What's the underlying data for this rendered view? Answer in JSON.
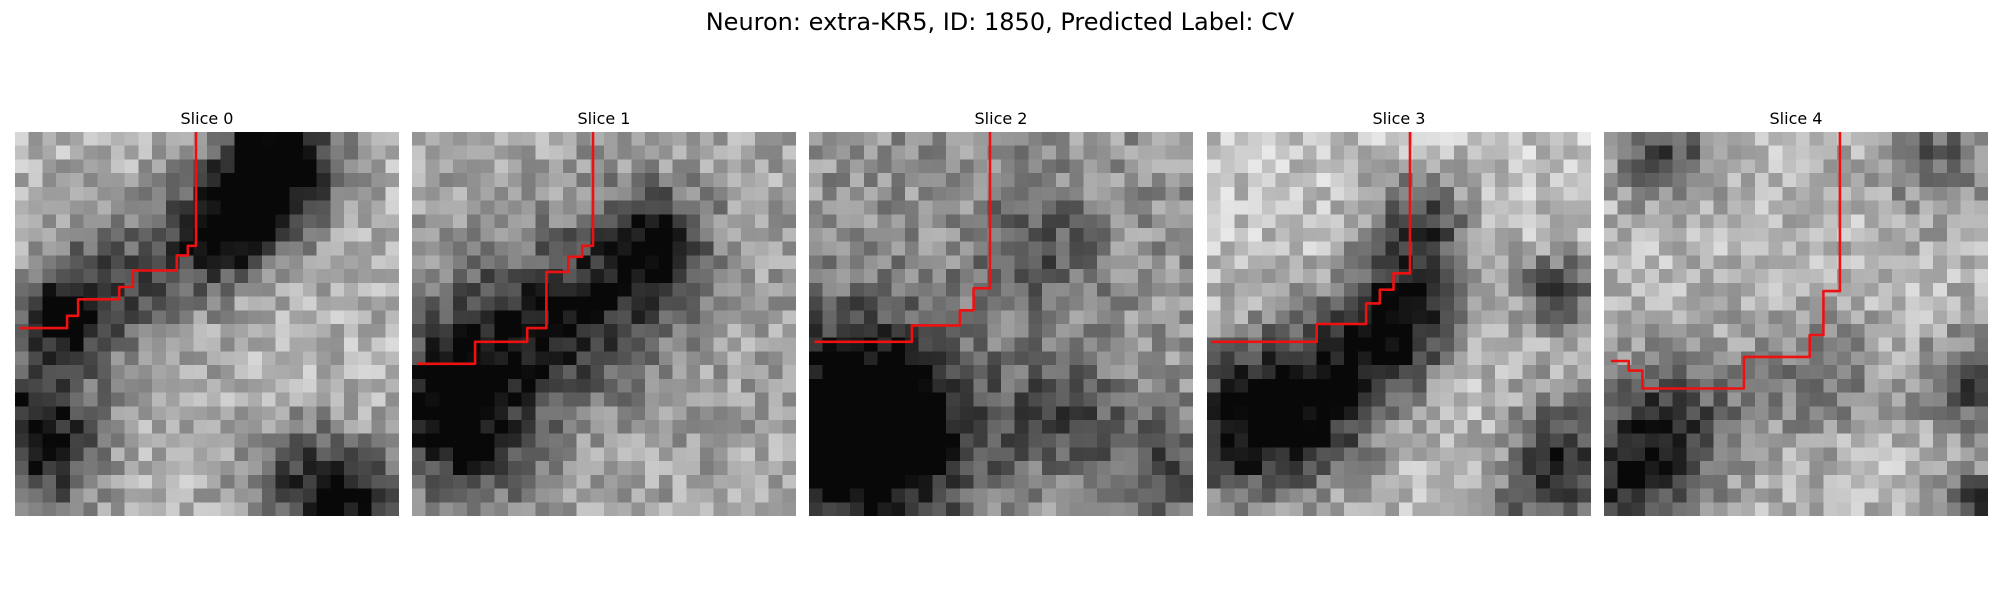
{
  "figure": {
    "title": "Neuron: extra-KR5, ID: 1850, Predicted Label: CV",
    "trace_color": "#ee1111"
  },
  "slices": [
    {
      "title": "Slice 0"
    },
    {
      "title": "Slice 1"
    },
    {
      "title": "Slice 2"
    },
    {
      "title": "Slice 3"
    },
    {
      "title": "Slice 4"
    }
  ]
}
